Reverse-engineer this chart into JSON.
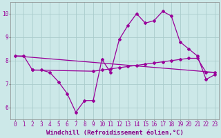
{
  "background_color": "#cce8e8",
  "grid_color": "#aacccc",
  "line_color": "#990099",
  "xlabel": "Windchill (Refroidissement éolien,°C)",
  "xlabel_color": "#880088",
  "xlim": [
    -0.5,
    23.5
  ],
  "ylim": [
    5.5,
    10.5
  ],
  "yticks": [
    6,
    7,
    8,
    9,
    10
  ],
  "xticks": [
    0,
    1,
    2,
    3,
    4,
    5,
    6,
    7,
    8,
    9,
    10,
    11,
    12,
    13,
    14,
    15,
    16,
    17,
    18,
    19,
    20,
    21,
    22,
    23
  ],
  "line1_x": [
    0,
    1,
    2,
    3,
    4,
    5,
    6,
    7,
    8,
    9,
    10,
    11,
    12,
    13,
    14,
    15,
    16,
    17,
    18,
    19,
    20,
    21,
    22,
    23
  ],
  "line1_y": [
    8.2,
    8.2,
    7.6,
    7.6,
    7.5,
    7.1,
    6.6,
    5.8,
    6.3,
    6.3,
    8.05,
    7.5,
    8.9,
    9.5,
    10.0,
    9.6,
    9.7,
    10.1,
    9.9,
    8.8,
    8.5,
    8.2,
    7.2,
    7.4
  ],
  "line2_x": [
    0,
    23
  ],
  "line2_y": [
    8.2,
    7.5
  ],
  "line3_x": [
    2,
    9,
    10,
    11,
    12,
    13,
    14,
    15,
    16,
    17,
    18,
    19,
    20,
    21,
    22,
    23
  ],
  "line3_y": [
    7.6,
    7.55,
    7.6,
    7.65,
    7.7,
    7.75,
    7.8,
    7.85,
    7.9,
    7.95,
    8.0,
    8.05,
    8.1,
    8.1,
    7.5,
    7.5
  ],
  "figsize": [
    3.2,
    2.0
  ],
  "dpi": 100,
  "tick_fontsize": 5.5,
  "xlabel_fontsize": 6.5
}
